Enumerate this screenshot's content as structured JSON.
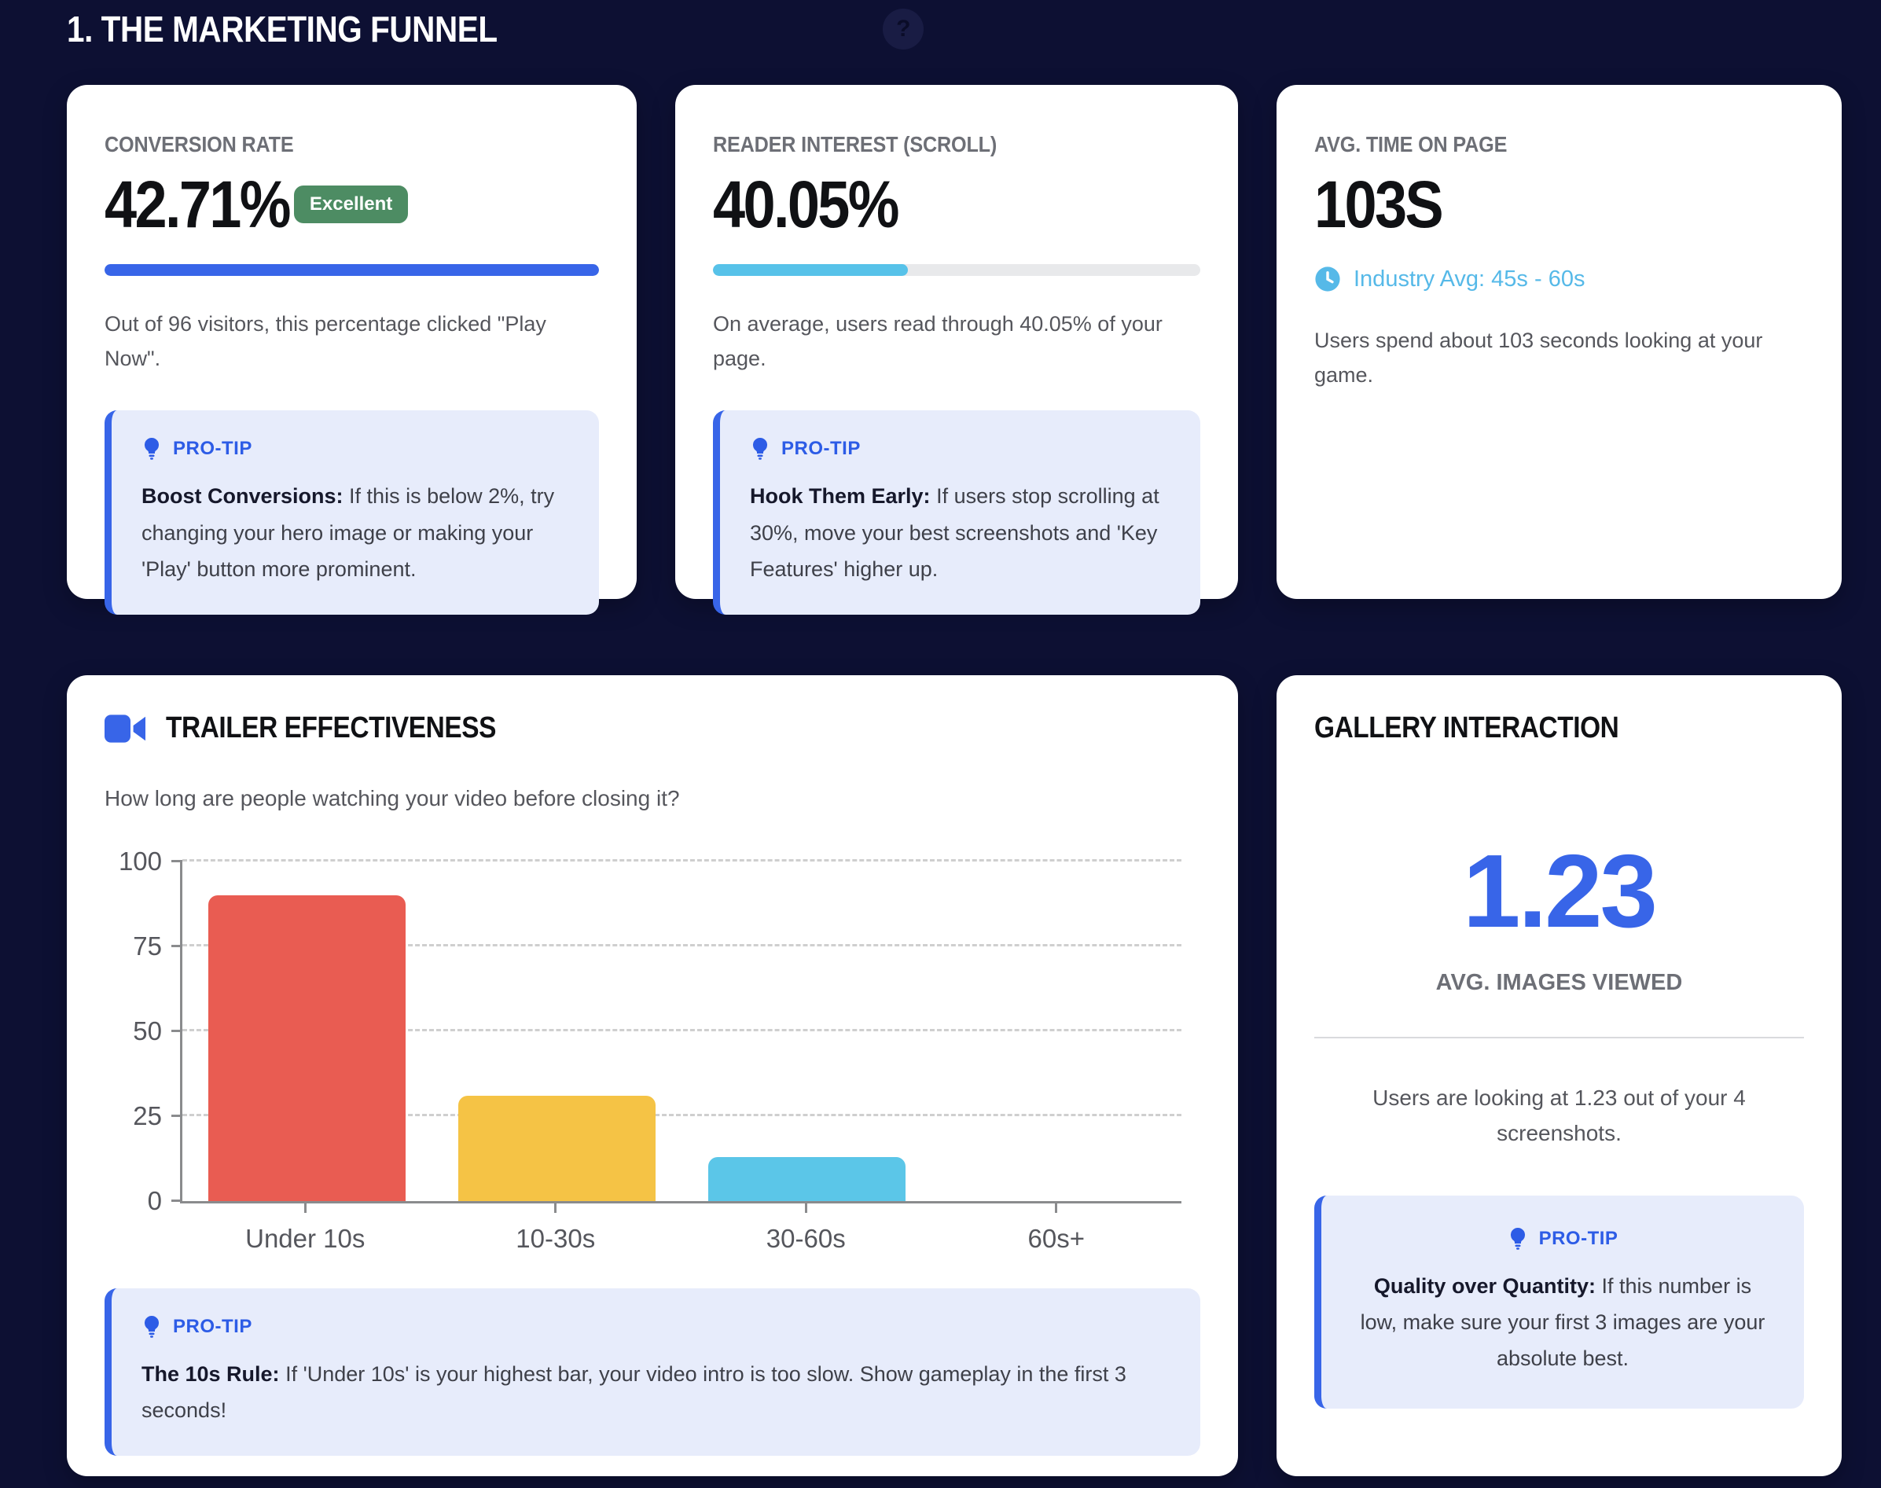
{
  "page": {
    "title": "1. THE MARKETING FUNNEL",
    "help_icon": "question-mark"
  },
  "colors": {
    "accent_blue": "#3865e8",
    "accent_cyan": "#57c2e9",
    "badge_green": "#4d8c63",
    "bar_red": "#e95c52",
    "bar_yellow": "#f5c345",
    "bar_cyan": "#5bc6e8",
    "background_navy": "#0d1033"
  },
  "cards": {
    "conversion": {
      "label": "CONVERSION RATE",
      "value": "42.71%",
      "badge": "Excellent",
      "progress_pct": 100,
      "description": "Out of 96 visitors, this percentage clicked \"Play Now\".",
      "protip": {
        "label": "PRO-TIP",
        "title": "Boost Conversions:",
        "text": "If this is below 2%, try changing your hero image or making your 'Play' button more prominent."
      }
    },
    "scroll": {
      "label": "READER INTEREST (SCROLL)",
      "value": "40.05%",
      "progress_pct": 40.05,
      "description": "On average, users read through 40.05% of your page.",
      "protip": {
        "label": "PRO-TIP",
        "title": "Hook Them Early:",
        "text": "If users stop scrolling at 30%, move your best screenshots and 'Key Features' higher up."
      }
    },
    "time": {
      "label": "AVG. TIME ON PAGE",
      "value": "103S",
      "industry_avg": "Industry Avg: 45s - 60s",
      "description": "Users spend about 103 seconds looking at your game."
    },
    "trailer": {
      "title": "TRAILER EFFECTIVENESS",
      "subtitle": "How long are people watching your video before closing it?",
      "protip": {
        "label": "PRO-TIP",
        "title": "The 10s Rule:",
        "text": "If 'Under 10s' is your highest bar, your video intro is too slow. Show gameplay in the first 3 seconds!"
      }
    },
    "gallery": {
      "title": "GALLERY INTERACTION",
      "value": "1.23",
      "value_label": "AVG. IMAGES VIEWED",
      "description": "Users are looking at 1.23 out of your 4 screenshots.",
      "protip": {
        "label": "PRO-TIP",
        "title": "Quality over Quantity:",
        "text": "If this number is low, make sure your first 3 images are your absolute best."
      }
    }
  },
  "chart_data": {
    "type": "bar",
    "title": "Trailer watch duration before closing",
    "categories": [
      "Under 10s",
      "10-30s",
      "30-60s",
      "60s+"
    ],
    "values": [
      90,
      31,
      13,
      0
    ],
    "bar_colors": [
      "#e95c52",
      "#f5c345",
      "#5bc6e8",
      "#cccccc"
    ],
    "xlabel": "",
    "ylabel": "",
    "ylim": [
      0,
      100
    ],
    "yticks": [
      0,
      25,
      50,
      75,
      100
    ],
    "grid": "horizontal-dashed",
    "legend": "none"
  }
}
